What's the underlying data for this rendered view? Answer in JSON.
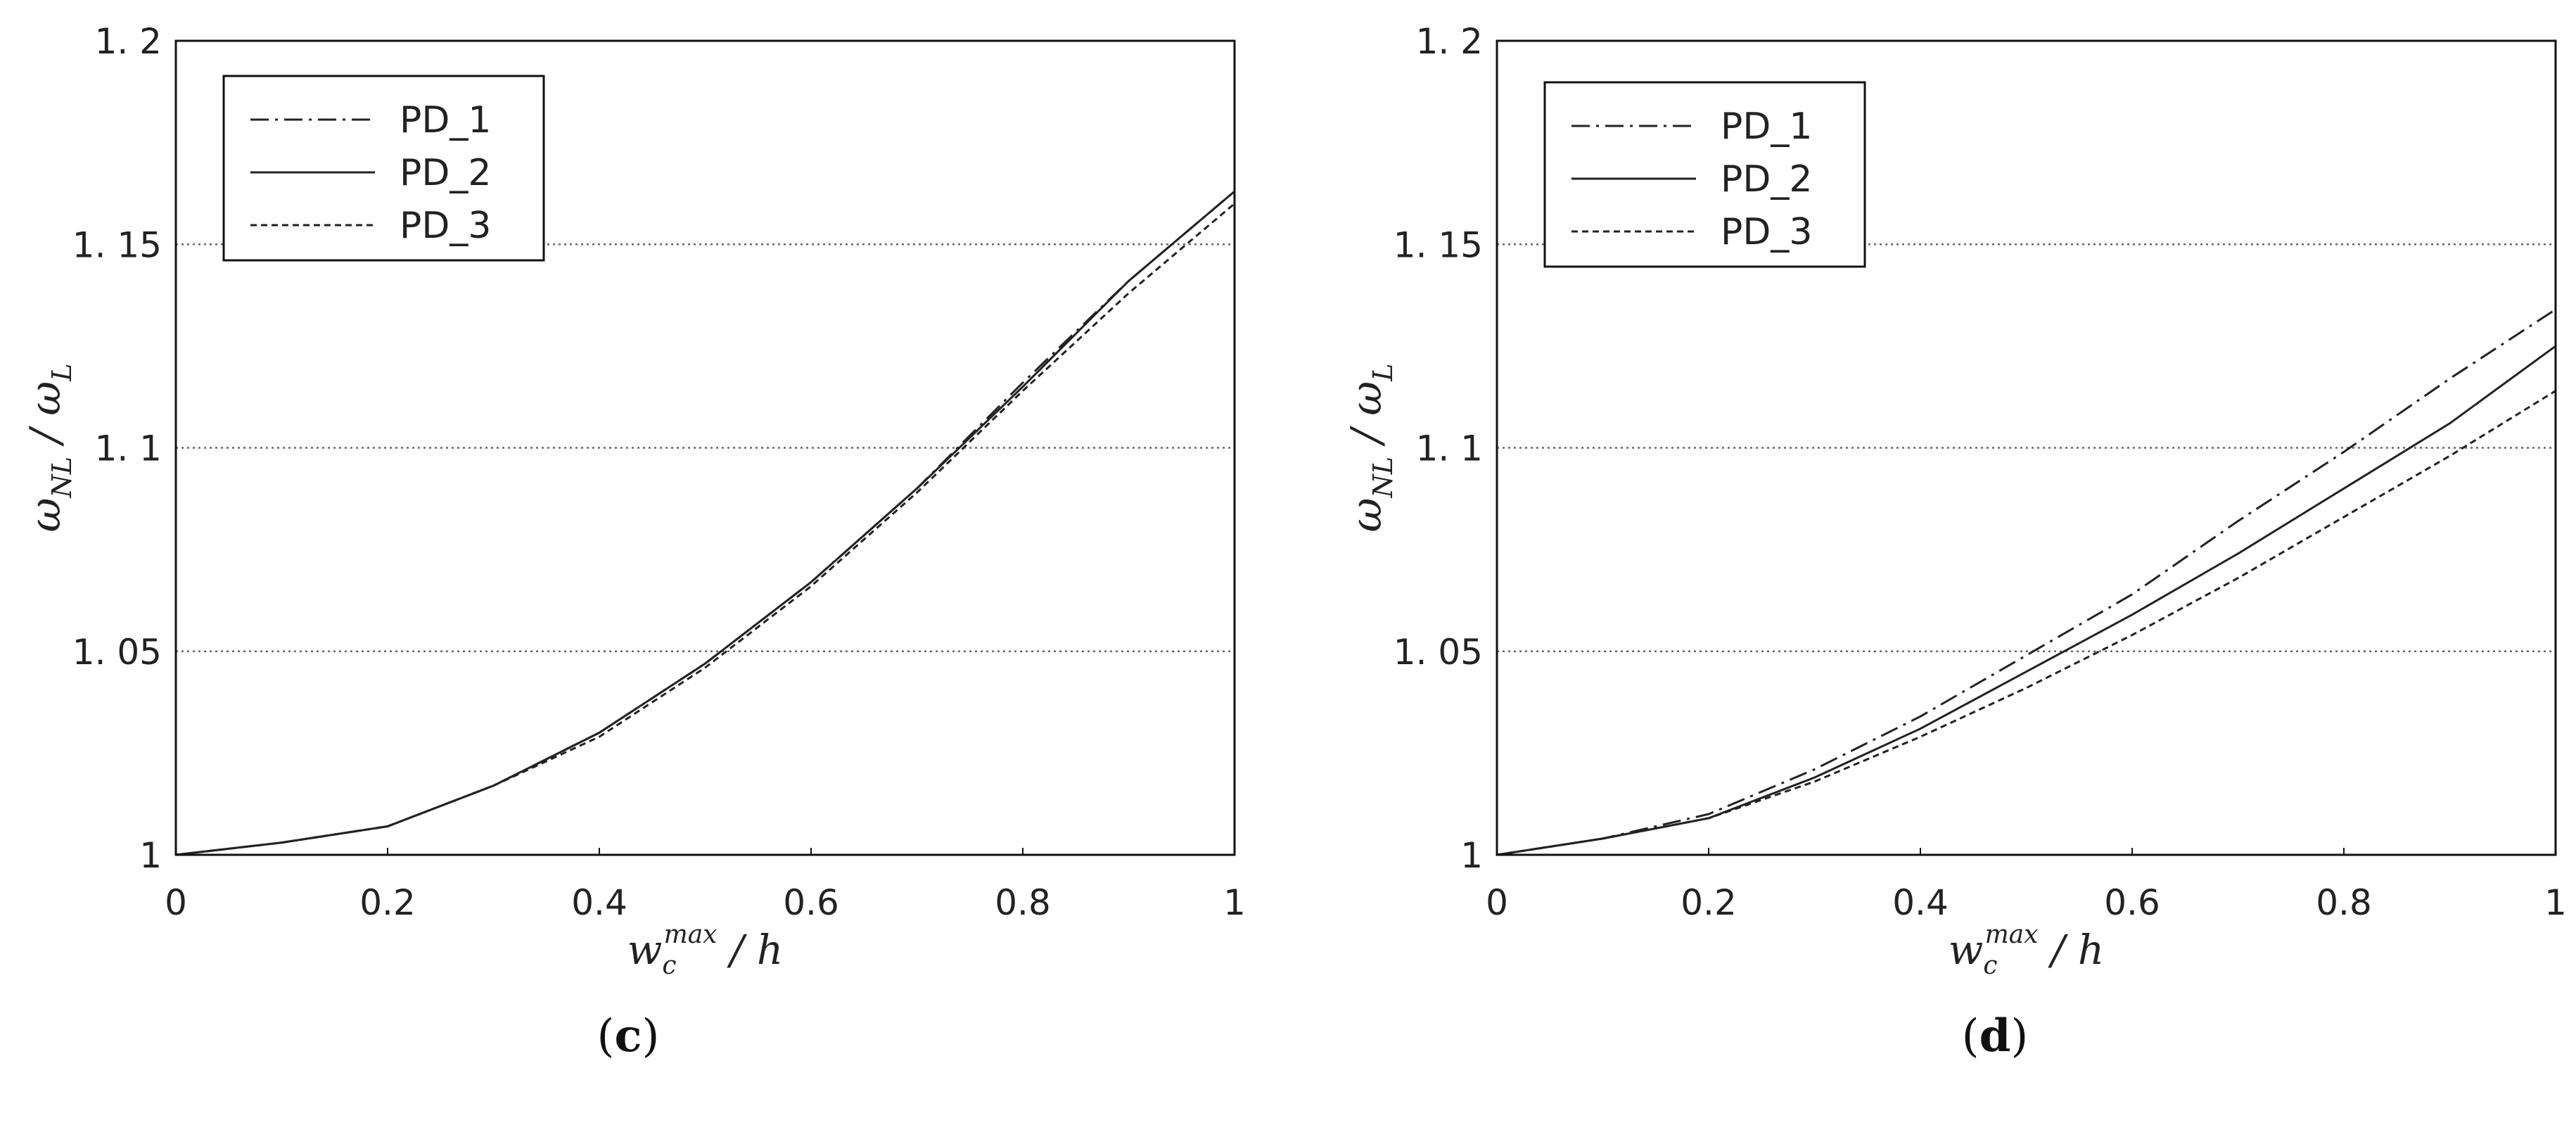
{
  "charts": [
    {
      "caption_letter": "c",
      "legend": [
        "PD_1",
        "PD_2",
        "PD_3"
      ],
      "ylabel_main": "ω",
      "ylabel_sub1": "NL",
      "ylabel_sep": " / ",
      "ylabel_sub2": "L",
      "xlabel_main": "w",
      "xlabel_sub": "c",
      "xlabel_sup": "max",
      "xlabel_rest": " / h",
      "xticks": [
        "0",
        "0.2",
        "0.4",
        "0.6",
        "0.8",
        "1"
      ],
      "yticks": [
        "1",
        "1.05",
        "1.1",
        "1.15",
        "1.2"
      ]
    },
    {
      "caption_letter": "d",
      "legend": [
        "PD_1",
        "PD_2",
        "PD_3"
      ],
      "ylabel_main": "ω",
      "ylabel_sub1": "NL",
      "ylabel_sep": " / ",
      "ylabel_sub2": "L",
      "xlabel_main": "w",
      "xlabel_sub": "c",
      "xlabel_sup": "max",
      "xlabel_rest": " / h",
      "xticks": [
        "0",
        "0.2",
        "0.4",
        "0.6",
        "0.8",
        "1"
      ],
      "yticks": [
        "1",
        "1.05",
        "1.1",
        "1.15",
        "1.2"
      ]
    }
  ],
  "chart_data": [
    {
      "type": "line",
      "xlim": [
        0,
        1
      ],
      "ylim": [
        1,
        1.2
      ],
      "grid": "horizontal dotted",
      "legend_position": "top-left",
      "x": [
        0,
        0.1,
        0.2,
        0.3,
        0.4,
        0.5,
        0.6,
        0.7,
        0.8,
        0.9,
        1.0
      ],
      "series": [
        {
          "name": "PD_1",
          "style": "dash-dot",
          "values": [
            1.0,
            1.003,
            1.007,
            1.017,
            1.03,
            1.047,
            1.067,
            1.09,
            1.116,
            1.141,
            1.163
          ]
        },
        {
          "name": "PD_2",
          "style": "solid",
          "values": [
            1.0,
            1.003,
            1.007,
            1.017,
            1.03,
            1.047,
            1.067,
            1.09,
            1.115,
            1.141,
            1.163
          ]
        },
        {
          "name": "PD_3",
          "style": "dashed",
          "values": [
            1.0,
            1.003,
            1.007,
            1.017,
            1.029,
            1.046,
            1.066,
            1.089,
            1.114,
            1.138,
            1.16
          ]
        }
      ]
    },
    {
      "type": "line",
      "xlim": [
        0,
        1
      ],
      "ylim": [
        1,
        1.2
      ],
      "grid": "horizontal dotted",
      "legend_position": "top-left",
      "x": [
        0,
        0.1,
        0.2,
        0.3,
        0.4,
        0.5,
        0.6,
        0.7,
        0.8,
        0.9,
        1.0
      ],
      "series": [
        {
          "name": "PD_1",
          "style": "dash-dot",
          "values": [
            1.0,
            1.004,
            1.01,
            1.021,
            1.034,
            1.049,
            1.064,
            1.082,
            1.099,
            1.117,
            1.134
          ]
        },
        {
          "name": "PD_2",
          "style": "solid",
          "values": [
            1.0,
            1.004,
            1.009,
            1.019,
            1.031,
            1.045,
            1.059,
            1.074,
            1.09,
            1.106,
            1.125
          ]
        },
        {
          "name": "PD_3",
          "style": "dashed",
          "values": [
            1.0,
            1.004,
            1.009,
            1.018,
            1.029,
            1.041,
            1.054,
            1.068,
            1.083,
            1.098,
            1.114
          ]
        }
      ]
    }
  ]
}
